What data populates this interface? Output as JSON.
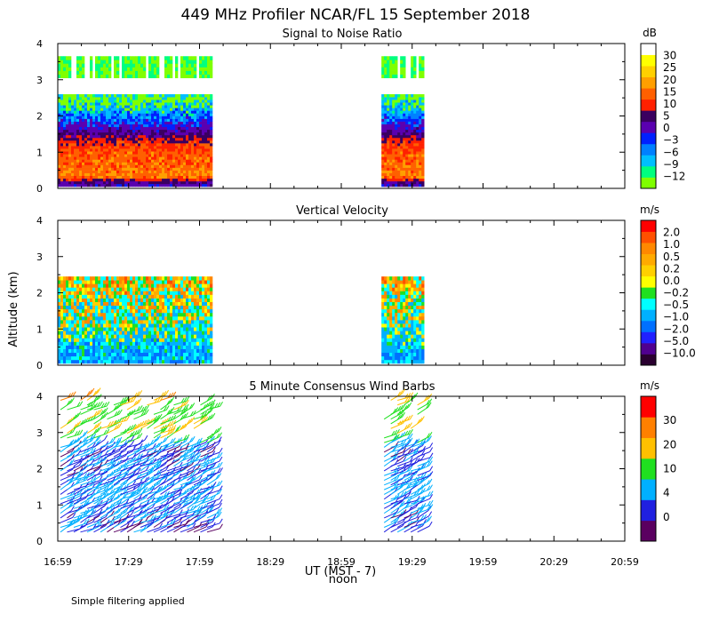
{
  "title": "449 MHz Profiler NCAR/FL 15 September 2018",
  "ylabel": "Altitude (km)",
  "xlabel": "UT  (MST - 7)",
  "xlabel_sub": "noon",
  "footnote": "Simple filtering applied",
  "x_ticks": [
    "16:59",
    "17:29",
    "17:59",
    "18:29",
    "18:59",
    "19:29",
    "19:59",
    "20:29",
    "20:59"
  ],
  "y_ticks": [
    "0",
    "1",
    "2",
    "3",
    "4"
  ],
  "panels": [
    {
      "title": "Signal to Noise Ratio",
      "unit": "dB"
    },
    {
      "title": "Vertical Velocity",
      "unit": "m/s"
    },
    {
      "title": "5 Minute Consensus Wind Barbs",
      "unit": "m/s"
    }
  ],
  "colors": {
    "snr": [
      "#7fff00",
      "#00ff7f",
      "#00bfff",
      "#0080ff",
      "#0020ff",
      "#5a00b0",
      "#3a0060",
      "#ff2000",
      "#ff6000",
      "#ff9f00",
      "#ffd000",
      "#ffff00",
      "#ffffff"
    ],
    "vv": [
      "#2a0030",
      "#500090",
      "#2020ff",
      "#0070ff",
      "#00b0ff",
      "#00ffff",
      "#20e020",
      "#ffff00",
      "#ffd000",
      "#ffaa00",
      "#ff8800",
      "#ff5000",
      "#ff0000"
    ],
    "wind": [
      "#5a0060",
      "#2020e0",
      "#00b0ff",
      "#20e020",
      "#ffc000",
      "#ff8000",
      "#ff0000"
    ]
  },
  "chart_data": [
    {
      "type": "heatmap",
      "title": "Signal to Noise Ratio",
      "units": "dB",
      "x_range": [
        "16:59",
        "20:59"
      ],
      "ylim": [
        0,
        4
      ],
      "data_spans": [
        [
          "16:59",
          "18:04"
        ],
        [
          "19:16",
          "19:33"
        ]
      ],
      "colorbar_labels": [
        "30",
        "25",
        "20",
        "15",
        "10",
        "5",
        "0",
        "−3",
        "−6",
        "−9",
        "−12"
      ],
      "profile": [
        {
          "altitude": 0.1,
          "snr": 3
        },
        {
          "altitude": 0.3,
          "snr": 20
        },
        {
          "altitude": 0.6,
          "snr": 18
        },
        {
          "altitude": 1.0,
          "snr": 16
        },
        {
          "altitude": 1.3,
          "snr": 11
        },
        {
          "altitude": 1.6,
          "snr": 2
        },
        {
          "altitude": 1.8,
          "snr": -2
        },
        {
          "altitude": 2.0,
          "snr": -5
        },
        {
          "altitude": 2.2,
          "snr": -8
        },
        {
          "altitude": 2.45,
          "snr": -11
        },
        {
          "altitude": 3.5,
          "snr": -11
        }
      ]
    },
    {
      "type": "heatmap",
      "title": "Vertical Velocity",
      "units": "m/s",
      "x_range": [
        "16:59",
        "20:59"
      ],
      "ylim": [
        0,
        4
      ],
      "data_spans": [
        [
          "16:59",
          "18:04"
        ],
        [
          "19:16",
          "19:33"
        ]
      ],
      "colorbar_labels": [
        "2.0",
        "1.0",
        "0.5",
        "0.2",
        "0.0",
        "−0.2",
        "−0.5",
        "−1.0",
        "−2.0",
        "−5.0",
        "−10.0"
      ],
      "profile": [
        {
          "altitude": 0.3,
          "w": -1.5
        },
        {
          "altitude": 0.8,
          "w": -0.8
        },
        {
          "altitude": 1.3,
          "w": -0.3
        },
        {
          "altitude": 1.8,
          "w": -0.2
        },
        {
          "altitude": 2.2,
          "w": 0.2
        }
      ]
    },
    {
      "type": "scatter",
      "title": "5 Minute Consensus Wind Barbs",
      "units": "m/s",
      "x_range": [
        "16:59",
        "20:59"
      ],
      "ylim": [
        0,
        4
      ],
      "data_spans": [
        [
          "16:59",
          "18:04"
        ],
        [
          "19:16",
          "19:33"
        ]
      ],
      "colorbar_labels": [
        "30",
        "20",
        "10",
        "4",
        "0"
      ],
      "profile": [
        {
          "altitude": 0.5,
          "speed": 3
        },
        {
          "altitude": 1.0,
          "speed": 5
        },
        {
          "altitude": 1.5,
          "speed": 5
        },
        {
          "altitude": 2.0,
          "speed": 3
        },
        {
          "altitude": 2.5,
          "speed": 3
        },
        {
          "altitude": 3.0,
          "speed": 18
        },
        {
          "altitude": 3.5,
          "speed": 12
        },
        {
          "altitude": 4.0,
          "speed": 22
        }
      ]
    }
  ]
}
